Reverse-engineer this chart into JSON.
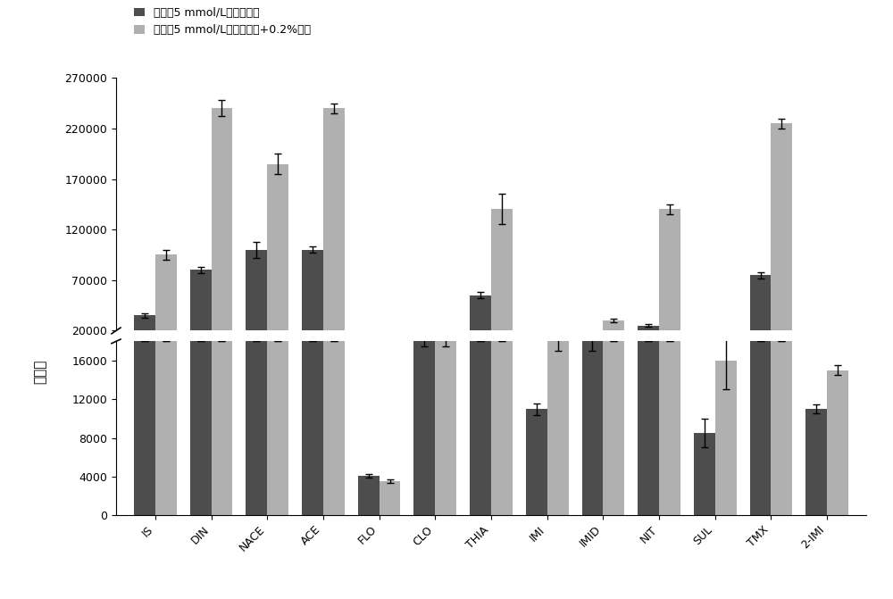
{
  "categories": [
    "IS",
    "DIN",
    "NACE",
    "ACE",
    "FLO",
    "CLO",
    "THIA",
    "IMI",
    "IMID",
    "NIT",
    "SUL",
    "TMX",
    "2-IMI"
  ],
  "series1_name": "甲醇－5 mmol/L乙酸铵溶液",
  "series2_name": "甲醇－5 mmol/L乙酸铵溶液+0.2%甲酸",
  "series1_color": "#4d4d4d",
  "series2_color": "#b0b0b0",
  "series1_values": [
    35000,
    80000,
    100000,
    100000,
    4100,
    18000,
    55000,
    11000,
    18000,
    25000,
    8500,
    75000,
    11000
  ],
  "series2_values": [
    95000,
    240000,
    185000,
    240000,
    3500,
    18000,
    140000,
    18000,
    30000,
    140000,
    16000,
    225000,
    15000
  ],
  "series1_errors": [
    2000,
    3000,
    8000,
    3000,
    200,
    500,
    3000,
    600,
    1000,
    1500,
    1500,
    3000,
    500
  ],
  "series2_errors": [
    5000,
    8000,
    10000,
    5000,
    200,
    500,
    15000,
    1000,
    2000,
    5000,
    3000,
    5000,
    500
  ],
  "upper_ylim": [
    20000,
    270000
  ],
  "upper_yticks": [
    20000,
    70000,
    120000,
    170000,
    220000,
    270000
  ],
  "lower_ylim": [
    0,
    18000
  ],
  "lower_yticks": [
    0,
    4000,
    8000,
    12000,
    16000
  ],
  "ylabel": "峰面积",
  "fig_width": 10.0,
  "fig_height": 6.71,
  "dpi": 100
}
